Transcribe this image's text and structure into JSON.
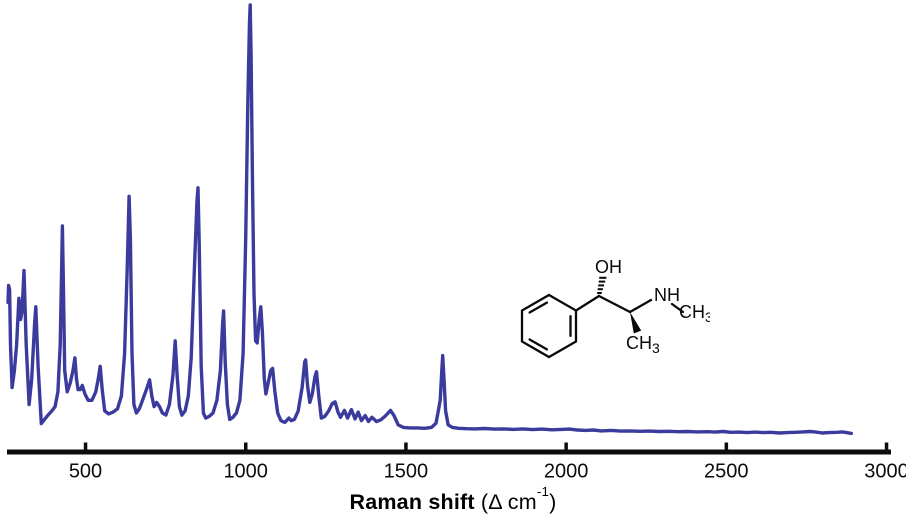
{
  "chart_data": {
    "type": "line",
    "title": "",
    "xlabel": "Raman shift (Δ cm⁻¹)",
    "xlabel_parts": {
      "bold": "Raman shift",
      "regular": " (Δ cm",
      "sup": "-1",
      "close": ")"
    },
    "ylabel": "",
    "x_ticks": [
      500,
      1000,
      1500,
      2000,
      2500,
      3000
    ],
    "xlim": [
      250,
      3050
    ],
    "ylim": [
      0,
      100
    ],
    "grid": false,
    "legend": null,
    "line_color": "#3b3b9d",
    "axis_color": "#0d0d0d",
    "y_unit": "relative intensity (arbitrary units, no visible y-axis)",
    "major_peaks_cm1": [
      292,
      308,
      345,
      428,
      467,
      546,
      638,
      700,
      780,
      851,
      931,
      1014,
      1047,
      1084,
      1187,
      1221,
      1280,
      1452,
      1615
    ],
    "series": [
      {
        "name": "raman-spectrum",
        "points": [
          [
            258,
            30
          ],
          [
            260,
            34
          ],
          [
            263,
            33
          ],
          [
            266,
            20
          ],
          [
            271,
            10
          ],
          [
            278,
            14
          ],
          [
            285,
            20
          ],
          [
            292,
            31
          ],
          [
            297,
            26
          ],
          [
            302,
            28
          ],
          [
            308,
            37.5
          ],
          [
            315,
            20
          ],
          [
            324,
            6
          ],
          [
            332,
            12
          ],
          [
            341,
            25
          ],
          [
            345,
            29
          ],
          [
            352,
            15
          ],
          [
            362,
            1.5
          ],
          [
            372,
            2.5
          ],
          [
            383,
            3.5
          ],
          [
            395,
            4.5
          ],
          [
            405,
            5.5
          ],
          [
            414,
            9
          ],
          [
            421,
            20
          ],
          [
            426,
            40
          ],
          [
            428,
            48
          ],
          [
            431,
            34
          ],
          [
            435,
            14
          ],
          [
            443,
            9
          ],
          [
            452,
            11
          ],
          [
            461,
            14
          ],
          [
            467,
            17
          ],
          [
            472,
            12
          ],
          [
            477,
            9.5
          ],
          [
            484,
            9.5
          ],
          [
            490,
            10.5
          ],
          [
            498,
            8.5
          ],
          [
            508,
            7
          ],
          [
            520,
            7
          ],
          [
            532,
            9
          ],
          [
            541,
            12.5
          ],
          [
            546,
            15
          ],
          [
            552,
            9.5
          ],
          [
            560,
            4.5
          ],
          [
            572,
            3.8
          ],
          [
            586,
            4.2
          ],
          [
            600,
            5
          ],
          [
            612,
            8
          ],
          [
            622,
            18
          ],
          [
            630,
            38
          ],
          [
            636,
            55
          ],
          [
            640,
            45
          ],
          [
            645,
            18
          ],
          [
            651,
            6
          ],
          [
            659,
            4
          ],
          [
            668,
            5
          ],
          [
            678,
            7
          ],
          [
            690,
            9.5
          ],
          [
            700,
            11.8
          ],
          [
            707,
            8
          ],
          [
            714,
            5.5
          ],
          [
            722,
            6.5
          ],
          [
            731,
            5.5
          ],
          [
            740,
            4
          ],
          [
            751,
            3.5
          ],
          [
            762,
            6
          ],
          [
            773,
            13
          ],
          [
            780,
            21
          ],
          [
            786,
            13
          ],
          [
            793,
            5.5
          ],
          [
            801,
            3.5
          ],
          [
            811,
            4.5
          ],
          [
            821,
            8
          ],
          [
            830,
            17
          ],
          [
            840,
            38
          ],
          [
            848,
            54
          ],
          [
            851,
            57
          ],
          [
            855,
            44
          ],
          [
            861,
            15
          ],
          [
            868,
            4
          ],
          [
            875,
            2.8
          ],
          [
            886,
            3.2
          ],
          [
            898,
            4
          ],
          [
            910,
            7
          ],
          [
            921,
            14
          ],
          [
            928,
            25
          ],
          [
            931,
            28
          ],
          [
            936,
            16
          ],
          [
            943,
            6
          ],
          [
            950,
            2.5
          ],
          [
            960,
            3
          ],
          [
            971,
            4
          ],
          [
            982,
            7
          ],
          [
            992,
            18
          ],
          [
            1000,
            45
          ],
          [
            1007,
            78
          ],
          [
            1012,
            96
          ],
          [
            1014,
            100
          ],
          [
            1017,
            88
          ],
          [
            1021,
            60
          ],
          [
            1026,
            32
          ],
          [
            1031,
            21
          ],
          [
            1036,
            20.5
          ],
          [
            1042,
            26
          ],
          [
            1047,
            29
          ],
          [
            1052,
            23
          ],
          [
            1058,
            12
          ],
          [
            1063,
            8.5
          ],
          [
            1070,
            11
          ],
          [
            1078,
            14
          ],
          [
            1084,
            14.5
          ],
          [
            1091,
            9
          ],
          [
            1100,
            4
          ],
          [
            1110,
            2.2
          ],
          [
            1122,
            1.8
          ],
          [
            1135,
            2.8
          ],
          [
            1142,
            2.2
          ],
          [
            1152,
            2.5
          ],
          [
            1164,
            4.5
          ],
          [
            1176,
            10
          ],
          [
            1184,
            16
          ],
          [
            1187,
            16.5
          ],
          [
            1193,
            10.5
          ],
          [
            1200,
            6.5
          ],
          [
            1208,
            8.5
          ],
          [
            1216,
            12.5
          ],
          [
            1221,
            13.7
          ],
          [
            1228,
            8
          ],
          [
            1236,
            2.8
          ],
          [
            1247,
            3.2
          ],
          [
            1259,
            4.5
          ],
          [
            1270,
            6.2
          ],
          [
            1279,
            6.6
          ],
          [
            1288,
            4.2
          ],
          [
            1296,
            3
          ],
          [
            1308,
            4.6
          ],
          [
            1318,
            2.8
          ],
          [
            1330,
            4.8
          ],
          [
            1341,
            2.6
          ],
          [
            1351,
            4.2
          ],
          [
            1361,
            2.2
          ],
          [
            1373,
            3.4
          ],
          [
            1383,
            2
          ],
          [
            1394,
            3
          ],
          [
            1408,
            2
          ],
          [
            1422,
            2.4
          ],
          [
            1437,
            3.4
          ],
          [
            1452,
            4.6
          ],
          [
            1463,
            3.4
          ],
          [
            1476,
            1.2
          ],
          [
            1492,
            0.6
          ],
          [
            1512,
            0.5
          ],
          [
            1535,
            0.5
          ],
          [
            1558,
            0.4
          ],
          [
            1580,
            0.6
          ],
          [
            1594,
            1.6
          ],
          [
            1601,
            4.5
          ],
          [
            1607,
            7
          ],
          [
            1612,
            14
          ],
          [
            1615,
            17.5
          ],
          [
            1619,
            12
          ],
          [
            1624,
            4.5
          ],
          [
            1632,
            1.2
          ],
          [
            1645,
            0.6
          ],
          [
            1665,
            0.4
          ],
          [
            1690,
            0.3
          ],
          [
            1715,
            0.25
          ],
          [
            1745,
            0.35
          ],
          [
            1775,
            0.2
          ],
          [
            1805,
            0.25
          ],
          [
            1835,
            0.15
          ],
          [
            1865,
            0.25
          ],
          [
            1895,
            0.1
          ],
          [
            1925,
            0.2
          ],
          [
            1955,
            0.05
          ],
          [
            1985,
            0.15
          ],
          [
            2010,
            0.2
          ],
          [
            2035,
            0
          ],
          [
            2060,
            -0.1
          ],
          [
            2085,
            0
          ],
          [
            2110,
            -0.2
          ],
          [
            2140,
            -0.1
          ],
          [
            2170,
            -0.25
          ],
          [
            2200,
            -0.2
          ],
          [
            2230,
            -0.3
          ],
          [
            2260,
            -0.25
          ],
          [
            2290,
            -0.35
          ],
          [
            2320,
            -0.3
          ],
          [
            2350,
            -0.4
          ],
          [
            2380,
            -0.35
          ],
          [
            2410,
            -0.45
          ],
          [
            2440,
            -0.4
          ],
          [
            2465,
            -0.5
          ],
          [
            2490,
            -0.35
          ],
          [
            2515,
            -0.55
          ],
          [
            2540,
            -0.5
          ],
          [
            2565,
            -0.6
          ],
          [
            2590,
            -0.5
          ],
          [
            2615,
            -0.6
          ],
          [
            2640,
            -0.55
          ],
          [
            2665,
            -0.7
          ],
          [
            2690,
            -0.6
          ],
          [
            2715,
            -0.55
          ],
          [
            2740,
            -0.45
          ],
          [
            2762,
            -0.35
          ],
          [
            2780,
            -0.5
          ],
          [
            2800,
            -0.7
          ],
          [
            2820,
            -0.6
          ],
          [
            2845,
            -0.55
          ],
          [
            2862,
            -0.45
          ],
          [
            2875,
            -0.6
          ],
          [
            2890,
            -0.8
          ]
        ]
      }
    ]
  },
  "molecule": {
    "name": "ephedrine skeletal structure",
    "labels": {
      "hydroxyl": {
        "main": "OH"
      },
      "amine": {
        "main": "NH"
      },
      "n_methyl": {
        "main": "CH",
        "sub": "3"
      },
      "c_methyl": {
        "main": "CH",
        "sub": "3"
      }
    }
  }
}
